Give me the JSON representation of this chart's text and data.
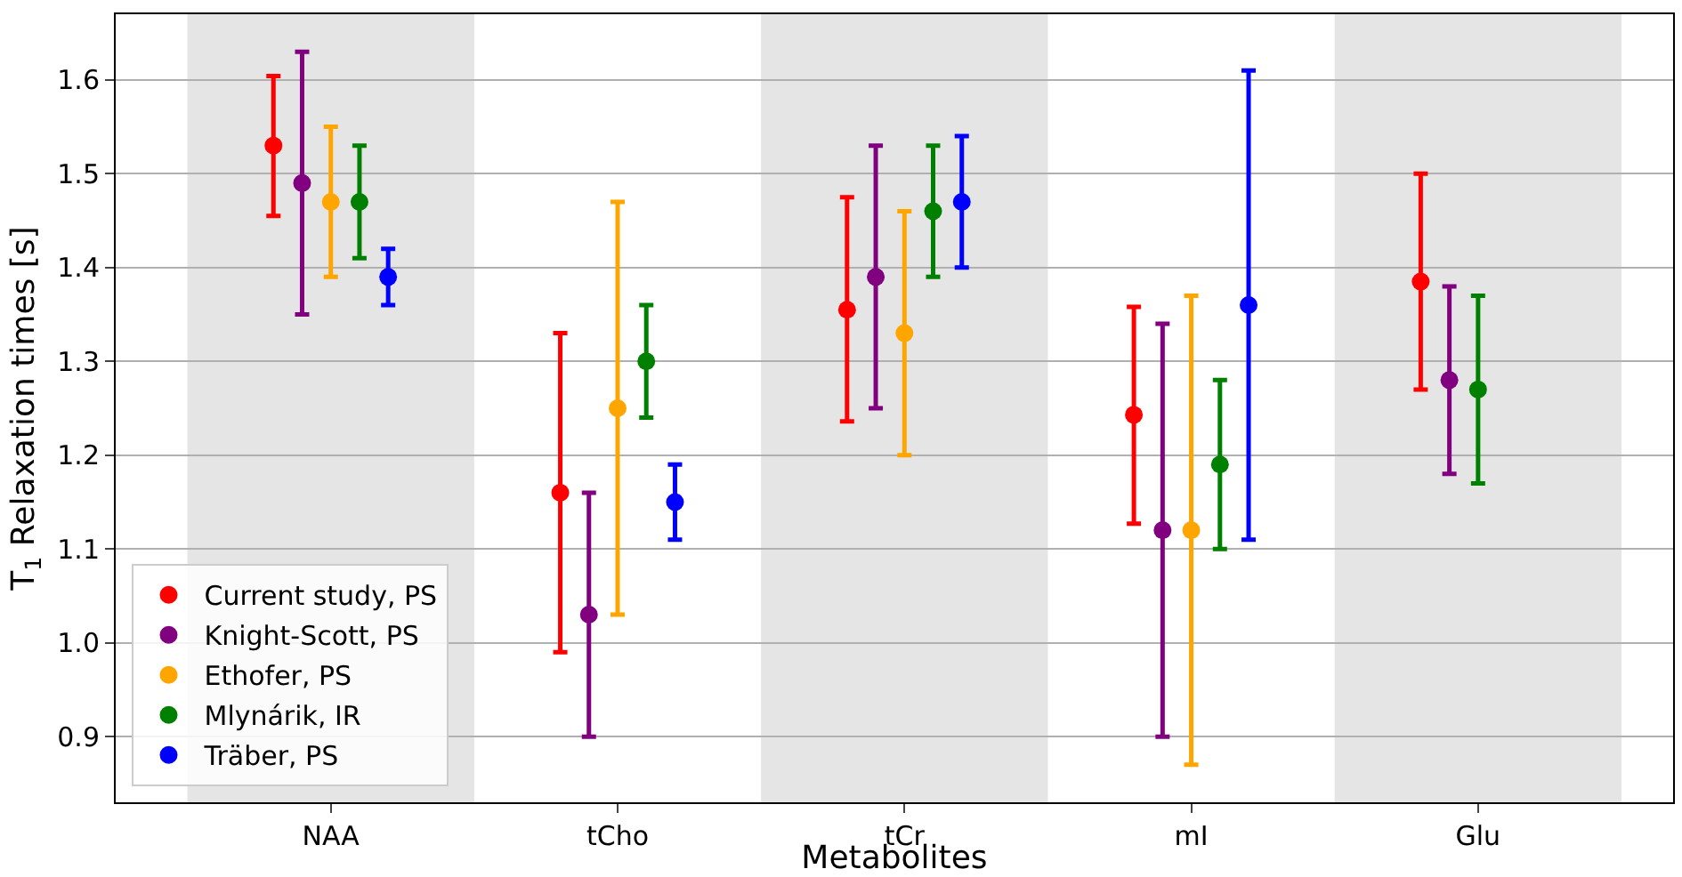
{
  "chart_data": {
    "type": "scatter",
    "xlabel": "Metabolites",
    "ylabel": "T$_{1}$ Relaxation times [s]",
    "categories": [
      "NAA",
      "tCho",
      "tCr",
      "mI",
      "Glu"
    ],
    "series": [
      {
        "name": "Current study, PS",
        "color": "#ff0000",
        "values": [
          1.53,
          1.16,
          1.355,
          1.243,
          1.385
        ],
        "errors": [
          [
            1.455,
            1.604
          ],
          [
            0.99,
            1.33
          ],
          [
            1.236,
            1.475
          ],
          [
            1.127,
            1.358
          ],
          [
            1.27,
            1.5
          ]
        ]
      },
      {
        "name": "Knight-Scott, PS",
        "color": "#800080",
        "values": [
          1.49,
          1.03,
          1.39,
          1.12,
          1.28
        ],
        "errors": [
          [
            1.35,
            1.63
          ],
          [
            0.9,
            1.16
          ],
          [
            1.25,
            1.53
          ],
          [
            0.9,
            1.34
          ],
          [
            1.18,
            1.38
          ]
        ]
      },
      {
        "name": "Ethofer, PS",
        "color": "#ffa500",
        "values": [
          1.47,
          1.25,
          1.33,
          1.12,
          null
        ],
        "errors": [
          [
            1.39,
            1.55
          ],
          [
            1.03,
            1.47
          ],
          [
            1.2,
            1.46
          ],
          [
            0.87,
            1.37
          ],
          null
        ]
      },
      {
        "name": "Mlynárik, IR",
        "color": "#008000",
        "values": [
          1.47,
          1.3,
          1.46,
          1.19,
          1.27
        ],
        "errors": [
          [
            1.41,
            1.53
          ],
          [
            1.24,
            1.36
          ],
          [
            1.39,
            1.53
          ],
          [
            1.1,
            1.28
          ],
          [
            1.17,
            1.37
          ]
        ]
      },
      {
        "name": "Träber, PS",
        "color": "#0000ff",
        "values": [
          1.39,
          1.15,
          1.47,
          1.36,
          null
        ],
        "errors": [
          [
            1.36,
            1.42
          ],
          [
            1.11,
            1.19
          ],
          [
            1.4,
            1.54
          ],
          [
            1.11,
            1.61
          ],
          null
        ]
      }
    ],
    "bands": [
      {
        "axis": "x",
        "from": "NAA",
        "to": "NAA",
        "color": "#e5e5e5"
      },
      {
        "axis": "x",
        "from": "tCr",
        "to": "tCr",
        "color": "#e5e5e5"
      },
      {
        "axis": "x",
        "from": "Glu",
        "to": "Glu",
        "color": "#e5e5e5"
      }
    ],
    "ylim": [
      0.83,
      1.67
    ],
    "yticks": [
      0.9,
      {
        "value": 1,
        "label": "1.0"
      },
      1.1,
      1.2,
      1.3,
      1.4,
      1.5,
      1.6
    ],
    "grid": "y",
    "legend": "bottom left",
    "marker": "circle"
  }
}
